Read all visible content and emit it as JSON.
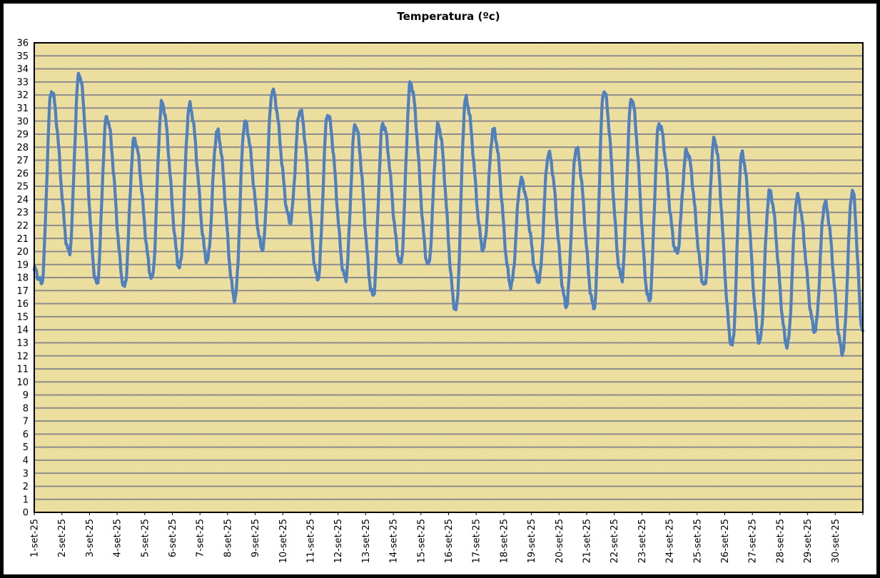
{
  "chart_data": {
    "type": "line",
    "title": "Temperatura (ºc)",
    "xlabel": "",
    "ylabel": "",
    "legend": "none",
    "grid": "horizontal",
    "ylim": [
      0,
      36
    ],
    "y_tick_step": 1,
    "y_ticks": [
      0,
      1,
      2,
      3,
      4,
      5,
      6,
      7,
      8,
      9,
      10,
      11,
      12,
      13,
      14,
      15,
      16,
      17,
      18,
      19,
      20,
      21,
      22,
      23,
      24,
      25,
      26,
      27,
      28,
      29,
      30,
      31,
      32,
      33,
      34,
      35,
      36
    ],
    "categories": [
      "1-set-25",
      "2-set-25",
      "3-set-25",
      "4-set-25",
      "5-set-25",
      "6-set-25",
      "7-set-25",
      "8-set-25",
      "9-set-25",
      "10-set-25",
      "11-set-25",
      "12-set-25",
      "13-set-25",
      "14-set-25",
      "15-set-25",
      "16-set-25",
      "17-set-25",
      "18-set-25",
      "19-set-25",
      "20-set-25",
      "21-set-25",
      "22-set-25",
      "23-set-25",
      "24-set-25",
      "25-set-25",
      "26-set-25",
      "27-set-25",
      "28-set-25",
      "29-set-25",
      "30-set-25"
    ],
    "sampling": "sub-daily readings; values below are the morning minimum and afternoon maximum read from the plot for each day",
    "series": [
      {
        "name": "Temperatura",
        "color": "#4f81bd",
        "stroke_width": 4.3,
        "start_value": 18.6,
        "end_value": 13.9,
        "daily": [
          {
            "day": "1-set-25",
            "min": 17.6,
            "max": 32.3
          },
          {
            "day": "2-set-25",
            "min": 19.9,
            "max": 33.6
          },
          {
            "day": "3-set-25",
            "min": 17.5,
            "max": 30.3
          },
          {
            "day": "4-set-25",
            "min": 17.3,
            "max": 28.6
          },
          {
            "day": "5-set-25",
            "min": 18.0,
            "max": 31.4
          },
          {
            "day": "6-set-25",
            "min": 18.8,
            "max": 31.2
          },
          {
            "day": "7-set-25",
            "min": 19.3,
            "max": 29.2
          },
          {
            "day": "8-set-25",
            "min": 16.4,
            "max": 29.9
          },
          {
            "day": "9-set-25",
            "min": 20.2,
            "max": 32.3
          },
          {
            "day": "10-set-25",
            "min": 22.3,
            "max": 30.8
          },
          {
            "day": "11-set-25",
            "min": 17.9,
            "max": 30.5
          },
          {
            "day": "12-set-25",
            "min": 17.9,
            "max": 29.7
          },
          {
            "day": "13-set-25",
            "min": 16.6,
            "max": 29.8
          },
          {
            "day": "14-set-25",
            "min": 19.1,
            "max": 32.9
          },
          {
            "day": "15-set-25",
            "min": 19.0,
            "max": 29.7
          },
          {
            "day": "16-set-25",
            "min": 15.5,
            "max": 31.7
          },
          {
            "day": "17-set-25",
            "min": 20.2,
            "max": 29.3
          },
          {
            "day": "18-set-25",
            "min": 17.4,
            "max": 25.5
          },
          {
            "day": "19-set-25",
            "min": 17.7,
            "max": 27.5
          },
          {
            "day": "20-set-25",
            "min": 15.9,
            "max": 27.9
          },
          {
            "day": "21-set-25",
            "min": 15.7,
            "max": 32.3
          },
          {
            "day": "22-set-25",
            "min": 17.9,
            "max": 31.7
          },
          {
            "day": "23-set-25",
            "min": 16.2,
            "max": 29.8
          },
          {
            "day": "24-set-25",
            "min": 19.9,
            "max": 27.7
          },
          {
            "day": "25-set-25",
            "min": 17.4,
            "max": 28.6
          },
          {
            "day": "26-set-25",
            "min": 12.8,
            "max": 27.5
          },
          {
            "day": "27-set-25",
            "min": 13.1,
            "max": 24.6
          },
          {
            "day": "28-set-25",
            "min": 12.8,
            "max": 24.2
          },
          {
            "day": "29-set-25",
            "min": 13.9,
            "max": 23.7
          },
          {
            "day": "30-set-25",
            "min": 12.3,
            "max": 24.7
          }
        ]
      }
    ],
    "colors": {
      "series": "#4f81bd",
      "plot_pattern_foreground": "#eec04f",
      "plot_pattern_background": "#fffdf0",
      "gridline": "#8b8b8b",
      "plot_border": "#000000",
      "frame_border": "#000000",
      "axis_text": "#000000"
    }
  }
}
